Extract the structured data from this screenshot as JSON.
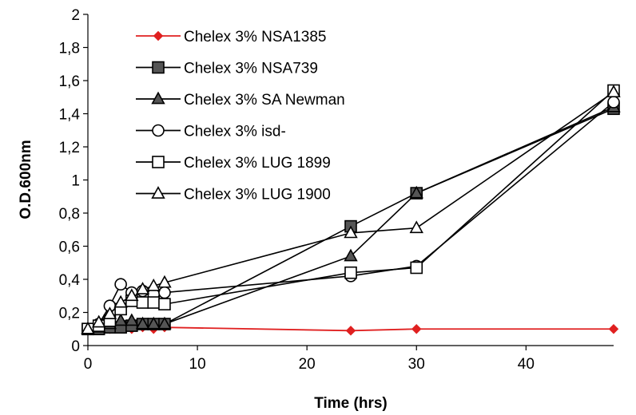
{
  "chart_data": {
    "type": "line",
    "xlabel": "Time (hrs)",
    "ylabel": "O.D.600nm",
    "xlim": [
      0,
      48
    ],
    "ylim": [
      0,
      2
    ],
    "x_ticks": [
      "0",
      "10",
      "20",
      "30",
      "40"
    ],
    "y_ticks": [
      "0",
      "0,2",
      "0,4",
      "0,6",
      "0,8",
      "1",
      "1,2",
      "1,4",
      "1,6",
      "1,8",
      "2"
    ],
    "grid": false,
    "legend_position": "top-left",
    "series": [
      {
        "name": "Chelex 3% NSA1385",
        "marker": "diamond",
        "color": "#e02020",
        "fill": "#e02020",
        "x": [
          0,
          1,
          2,
          3,
          4,
          5,
          6,
          7,
          24,
          30,
          48
        ],
        "y": [
          0.1,
          0.11,
          0.1,
          0.11,
          0.1,
          0.11,
          0.1,
          0.11,
          0.09,
          0.1,
          0.1
        ]
      },
      {
        "name": "Chelex 3% NSA739",
        "marker": "square",
        "color": "#000000",
        "fill": "#555555",
        "x": [
          0,
          1,
          2,
          3,
          4,
          5,
          6,
          7,
          24,
          30,
          48
        ],
        "y": [
          0.1,
          0.1,
          0.11,
          0.11,
          0.12,
          0.13,
          0.13,
          0.13,
          0.72,
          0.92,
          1.43
        ]
      },
      {
        "name": "Chelex 3% SA Newman",
        "marker": "triangle",
        "color": "#000000",
        "fill": "#555555",
        "x": [
          0,
          1,
          2,
          3,
          4,
          5,
          6,
          7,
          24,
          30,
          48
        ],
        "y": [
          0.1,
          0.11,
          0.13,
          0.15,
          0.15,
          0.13,
          0.13,
          0.13,
          0.54,
          0.92,
          1.44
        ]
      },
      {
        "name": "Chelex 3% isd-",
        "marker": "circle",
        "color": "#000000",
        "fill": "#ffffff",
        "x": [
          0,
          1,
          2,
          3,
          4,
          5,
          6,
          7,
          24,
          30,
          48
        ],
        "y": [
          0.1,
          0.13,
          0.24,
          0.37,
          0.32,
          0.33,
          0.31,
          0.32,
          0.42,
          0.48,
          1.47
        ]
      },
      {
        "name": "Chelex 3% LUG 1899",
        "marker": "square",
        "color": "#000000",
        "fill": "#ffffff",
        "x": [
          0,
          1,
          2,
          3,
          4,
          5,
          6,
          7,
          24,
          30,
          48
        ],
        "y": [
          0.1,
          0.12,
          0.15,
          0.22,
          0.27,
          0.26,
          0.26,
          0.25,
          0.44,
          0.47,
          1.54
        ]
      },
      {
        "name": "Chelex 3% LUG 1900",
        "marker": "triangle",
        "color": "#000000",
        "fill": "#ffffff",
        "x": [
          0,
          1,
          2,
          3,
          4,
          5,
          6,
          7,
          24,
          30,
          48
        ],
        "y": [
          0.1,
          0.14,
          0.19,
          0.26,
          0.3,
          0.34,
          0.36,
          0.38,
          0.68,
          0.71,
          1.53
        ]
      }
    ]
  }
}
